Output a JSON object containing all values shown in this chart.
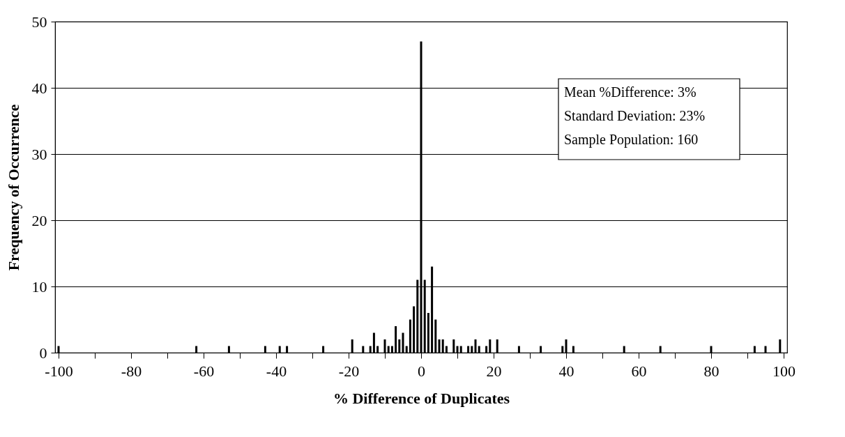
{
  "chart_data": {
    "type": "bar",
    "xlabel": "% Difference of Duplicates",
    "ylabel": "Frequency of Occurrence",
    "x": [
      -100,
      -62,
      -53,
      -43,
      -39,
      -37,
      -27,
      -19,
      -16,
      -14,
      -13,
      -12,
      -10,
      -9,
      -8,
      -7,
      -6,
      -5,
      -4,
      -3,
      -2,
      -1,
      0,
      1,
      2,
      3,
      4,
      5,
      6,
      7,
      9,
      10,
      11,
      13,
      14,
      15,
      16,
      18,
      19,
      21,
      27,
      33,
      39,
      40,
      42,
      56,
      66,
      80,
      92,
      95,
      99
    ],
    "values": [
      1,
      1,
      1,
      1,
      1,
      1,
      1,
      2,
      1,
      1,
      3,
      1,
      2,
      1,
      1,
      4,
      2,
      3,
      1,
      5,
      7,
      11,
      47,
      11,
      6,
      13,
      5,
      2,
      2,
      1,
      2,
      1,
      1,
      1,
      1,
      2,
      1,
      1,
      2,
      2,
      1,
      1,
      1,
      2,
      1,
      1,
      1,
      1,
      1,
      1,
      2
    ],
    "color": "#000000",
    "xlim": [
      -100,
      100
    ],
    "xticks": [
      -100,
      {
        "value": -90,
        "label": null
      },
      -80,
      {
        "value": -70,
        "label": null
      },
      -60,
      {
        "value": -50,
        "label": null
      },
      -40,
      {
        "value": -30,
        "label": null
      },
      -20,
      {
        "value": -10,
        "label": null
      },
      0,
      {
        "value": 10,
        "label": null
      },
      20,
      {
        "value": 30,
        "label": null
      },
      40,
      {
        "value": 50,
        "label": null
      },
      60,
      {
        "value": 70,
        "label": null
      },
      80,
      {
        "value": 90,
        "label": null
      },
      100
    ],
    "ylim": [
      0,
      50
    ],
    "yticks": [
      0,
      10,
      20,
      30,
      40,
      50
    ],
    "grid": "y",
    "annotations": [
      "Mean %Difference: 3%",
      "Standard Deviation: 23%",
      "Sample Population: 160"
    ]
  }
}
